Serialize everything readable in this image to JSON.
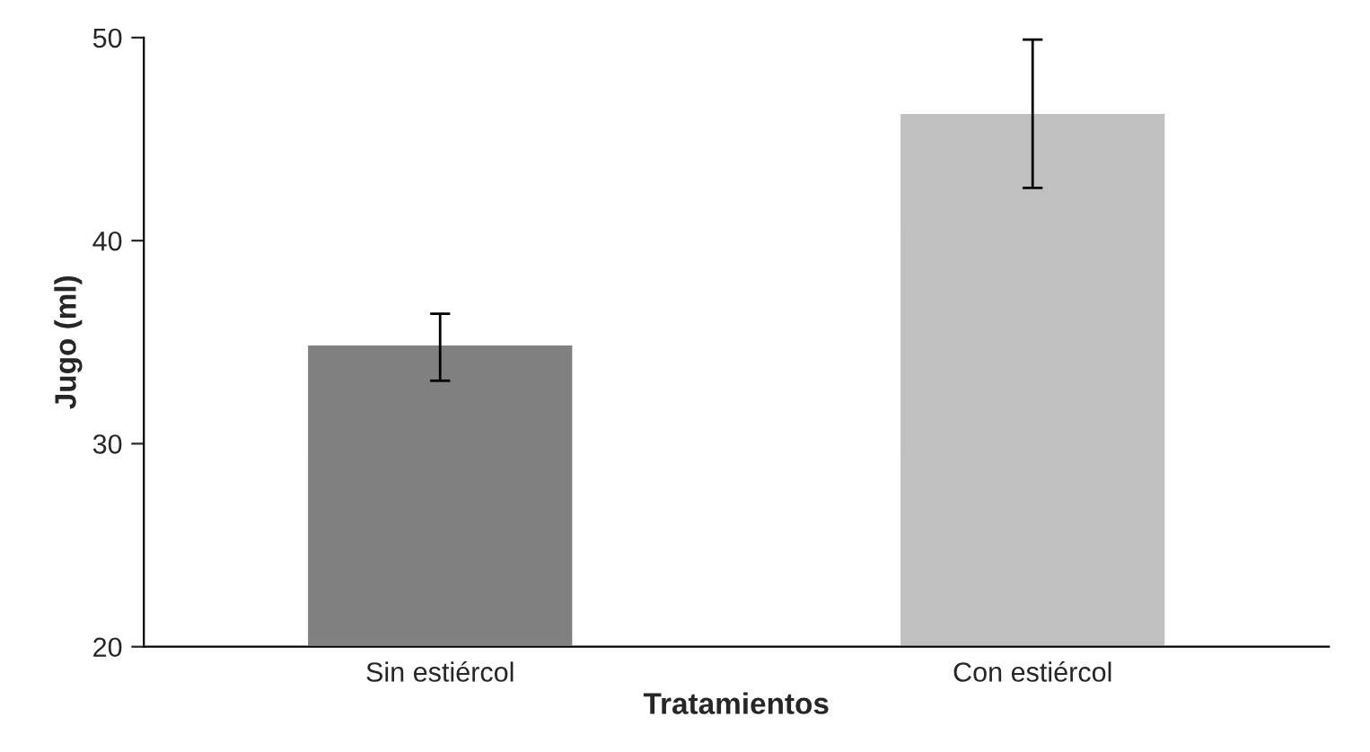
{
  "chart_data": {
    "type": "bar",
    "xlabel": "Tratamientos",
    "ylabel": "Jugo (ml)",
    "categories": [
      "Sin estiércol",
      "Con estiércol"
    ],
    "values": [
      34.9,
      46.3
    ],
    "colors": [
      "#808080",
      "#c0c0c0"
    ],
    "errors": [
      [
        33.1,
        36.4
      ],
      [
        42.6,
        49.9
      ]
    ],
    "ylim": [
      20,
      50
    ],
    "yticks": [
      20,
      30,
      40,
      50
    ],
    "grid": false,
    "legend": false
  }
}
